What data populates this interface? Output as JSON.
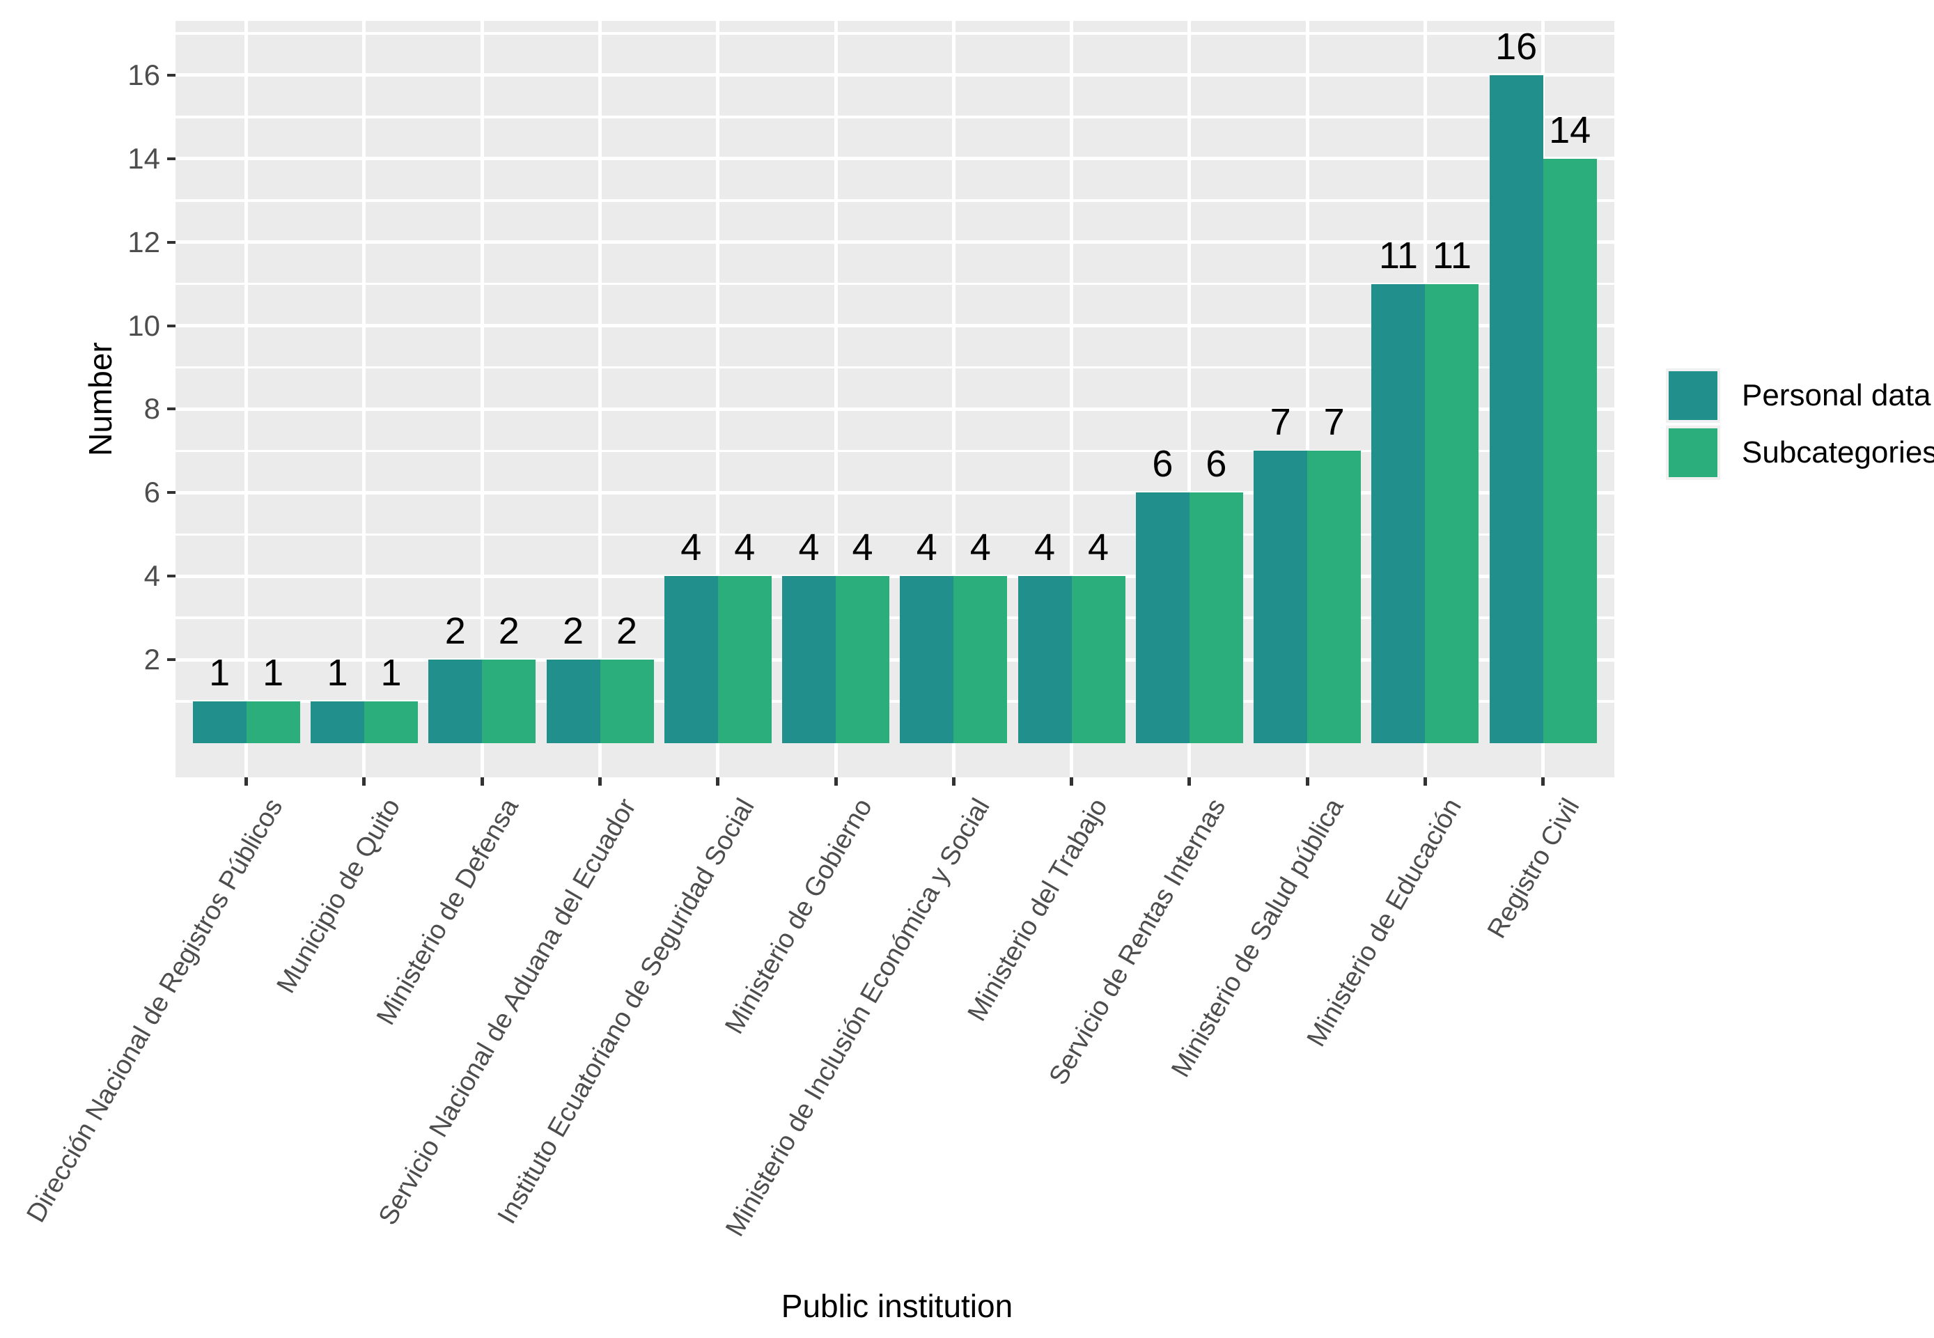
{
  "chart_data": {
    "type": "bar",
    "title": "",
    "xlabel": "Public institution",
    "ylabel": "Number",
    "categories": [
      "Dirección Nacional de Registros Públicos",
      "Municipio de Quito",
      "Ministerio de Defensa",
      "Servicio Nacional de Aduana del Ecuador",
      "Instituto Ecuatoriano de Seguridad Social",
      "Ministerio de Gobierno",
      "Ministerio de Inclusión Económica y Social",
      "Ministerio del Trabajo",
      "Servicio de Rentas Internas",
      "Ministerio de Salud pública",
      "Ministerio de Educación",
      "Registro Civil"
    ],
    "series": [
      {
        "name": "Personal data",
        "color": "#218F8B",
        "values": [
          1,
          1,
          2,
          2,
          4,
          4,
          4,
          4,
          6,
          7,
          11,
          16
        ]
      },
      {
        "name": "Subcategories",
        "color": "#2BAE7C",
        "values": [
          1,
          1,
          2,
          2,
          4,
          4,
          4,
          4,
          6,
          7,
          11,
          14
        ]
      }
    ],
    "bar_value_labels": [
      [
        "1",
        "1",
        "2",
        "2",
        "4",
        "4",
        "4",
        "4",
        "6",
        "7",
        "11",
        "16"
      ],
      [
        "1",
        "1",
        "2",
        "2",
        "4",
        "4",
        "4",
        "4",
        "6",
        "7",
        "11",
        "14"
      ]
    ],
    "yticks": [
      "2",
      "4",
      "6",
      "8",
      "10",
      "12",
      "14",
      "16"
    ],
    "ytick_values": [
      2,
      4,
      6,
      8,
      10,
      12,
      14,
      16
    ],
    "ytick_minor_values": [
      1,
      3,
      5,
      7,
      9,
      11,
      13,
      15,
      17
    ],
    "ylim": [
      0,
      17.3
    ],
    "x_label_angle": -60,
    "grid": "major-and-minor-horizontal, major-vertical, white on gray panel",
    "legend_position": "right",
    "colors": {
      "panel_bg": "#EBEBEB",
      "grid": "#FFFFFF",
      "tick_mark": "#333333",
      "axis_text": "#4D4D4D",
      "axis_title": "#000000",
      "bar_label": "#000000",
      "legend_key_bg": "#F0F0F0"
    }
  },
  "legend": {
    "items": [
      {
        "label": "Personal data",
        "color": "#218F8B"
      },
      {
        "label": "Subcategories",
        "color": "#2BAE7C"
      }
    ]
  }
}
